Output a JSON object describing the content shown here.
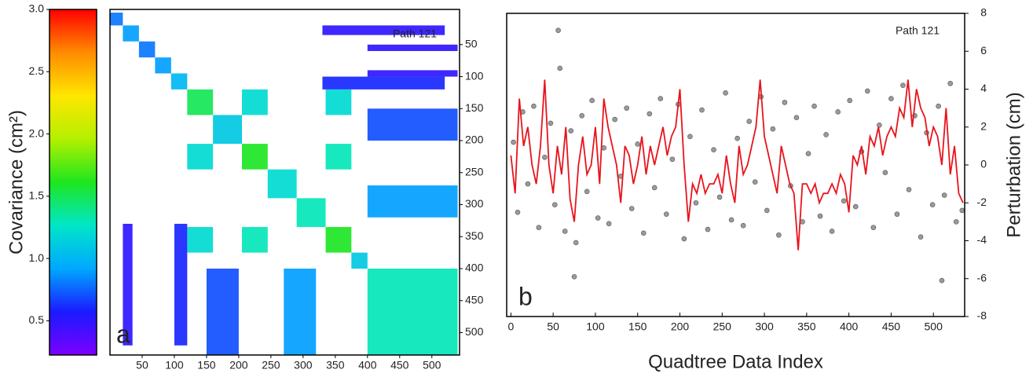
{
  "chart_data": [
    {
      "type": "heatmap",
      "annotation": "Path 121",
      "panel": "a",
      "colorbar_label": "Covariance (cm²)",
      "clim": [
        0.225,
        3.0
      ],
      "cticks": [
        {
          "value": 0.5,
          "label": "0.5"
        },
        {
          "value": 1,
          "label": "1.0"
        },
        {
          "value": 1.5,
          "label": "1.5"
        },
        {
          "value": 2,
          "label": "2.0"
        },
        {
          "value": 2.5,
          "label": "2.5"
        },
        {
          "value": 3,
          "label": "3.0"
        }
      ],
      "colormap": [
        "#7b00ff",
        "#1a1aff",
        "#00a8ff",
        "#00e6c8",
        "#1ee61e",
        "#b4f000",
        "#ffe600",
        "#ff8c00",
        "#ff0000"
      ],
      "xlim": [
        0,
        543
      ],
      "ylim": [
        -5,
        535
      ],
      "xticks": [
        50,
        100,
        150,
        200,
        250,
        300,
        350,
        400,
        450,
        500
      ],
      "yticks": [
        50,
        100,
        150,
        200,
        250,
        300,
        350,
        400,
        450,
        500
      ],
      "blocks": [
        {
          "x": [
            0,
            20
          ],
          "y": [
            0,
            20
          ],
          "value": 0.8
        },
        {
          "x": [
            20,
            45
          ],
          "y": [
            20,
            45
          ],
          "value": 0.9
        },
        {
          "x": [
            45,
            70
          ],
          "y": [
            45,
            70
          ],
          "value": 0.8
        },
        {
          "x": [
            70,
            95
          ],
          "y": [
            70,
            95
          ],
          "value": 0.9
        },
        {
          "x": [
            95,
            120
          ],
          "y": [
            95,
            120
          ],
          "value": 1.0
        },
        {
          "x": [
            120,
            160
          ],
          "y": [
            120,
            160
          ],
          "value": 1.5
        },
        {
          "x": [
            160,
            205
          ],
          "y": [
            160,
            205
          ],
          "value": 1.1
        },
        {
          "x": [
            205,
            245
          ],
          "y": [
            205,
            245
          ],
          "value": 1.6
        },
        {
          "x": [
            245,
            290
          ],
          "y": [
            245,
            290
          ],
          "value": 1.2
        },
        {
          "x": [
            290,
            335
          ],
          "y": [
            290,
            335
          ],
          "value": 1.3
        },
        {
          "x": [
            335,
            375
          ],
          "y": [
            335,
            375
          ],
          "value": 1.6
        },
        {
          "x": [
            375,
            400
          ],
          "y": [
            375,
            400
          ],
          "value": 1.1
        },
        {
          "x": [
            400,
            540
          ],
          "y": [
            400,
            540
          ],
          "value": 1.3
        },
        {
          "x": [
            205,
            245
          ],
          "y": [
            120,
            160
          ],
          "value": 1.2
        },
        {
          "x": [
            120,
            160
          ],
          "y": [
            205,
            245
          ],
          "value": 1.2
        },
        {
          "x": [
            335,
            375
          ],
          "y": [
            120,
            160
          ],
          "value": 1.2
        },
        {
          "x": [
            120,
            160
          ],
          "y": [
            335,
            375
          ],
          "value": 1.2
        },
        {
          "x": [
            335,
            375
          ],
          "y": [
            205,
            245
          ],
          "value": 1.3
        },
        {
          "x": [
            205,
            245
          ],
          "y": [
            335,
            375
          ],
          "value": 1.3
        },
        {
          "x": [
            400,
            540
          ],
          "y": [
            150,
            200
          ],
          "value": 0.7
        },
        {
          "x": [
            150,
            200
          ],
          "y": [
            400,
            540
          ],
          "value": 0.7
        },
        {
          "x": [
            400,
            540
          ],
          "y": [
            270,
            320
          ],
          "value": 0.9
        },
        {
          "x": [
            270,
            320
          ],
          "y": [
            400,
            540
          ],
          "value": 0.9
        },
        {
          "x": [
            20,
            35
          ],
          "y": [
            330,
            520
          ],
          "value": 0.5
        },
        {
          "x": [
            330,
            520
          ],
          "y": [
            20,
            35
          ],
          "value": 0.5
        },
        {
          "x": [
            100,
            120
          ],
          "y": [
            330,
            520
          ],
          "value": 0.6
        },
        {
          "x": [
            330,
            520
          ],
          "y": [
            100,
            120
          ],
          "value": 0.6
        },
        {
          "x": [
            400,
            540
          ],
          "y": [
            50,
            60
          ],
          "value": 0.5
        },
        {
          "x": [
            400,
            540
          ],
          "y": [
            90,
            100
          ],
          "value": 0.5
        }
      ]
    },
    {
      "type": "scatter-line",
      "annotation": "Path 121",
      "panel": "b",
      "xlabel": "Quadtree Data Index",
      "ylabel": "Perturbation (cm)",
      "xlim": [
        -5,
        537
      ],
      "ylim": [
        -8,
        8
      ],
      "xticks": [
        0,
        50,
        100,
        150,
        200,
        250,
        300,
        350,
        400,
        450,
        500
      ],
      "yticks": [
        -8,
        -6,
        -4,
        -2,
        0,
        2,
        4,
        6,
        8
      ],
      "scatter": {
        "color": "#9a9a9a",
        "x": [
          3,
          8,
          14,
          20,
          27,
          33,
          40,
          47,
          52,
          58,
          64,
          71,
          77,
          84,
          90,
          96,
          103,
          110,
          116,
          123,
          130,
          137,
          143,
          150,
          157,
          164,
          170,
          177,
          184,
          191,
          198,
          205,
          212,
          219,
          226,
          233,
          240,
          247,
          254,
          261,
          268,
          275,
          282,
          289,
          296,
          303,
          310,
          317,
          324,
          331,
          338,
          345,
          352,
          359,
          366,
          373,
          380,
          387,
          394,
          401,
          408,
          415,
          422,
          429,
          436,
          443,
          450,
          457,
          464,
          471,
          478,
          485,
          492,
          499,
          506,
          513,
          520,
          527,
          534,
          56,
          75,
          510
        ],
        "y": [
          1.2,
          -2.5,
          2.8,
          -1,
          3.1,
          -3.3,
          0.4,
          2.2,
          -2.1,
          5.1,
          -3.5,
          1.8,
          -4.1,
          2.6,
          -1.4,
          3.4,
          -2.8,
          0.9,
          -3.1,
          2.4,
          -0.6,
          3,
          -2.3,
          1.1,
          -3.6,
          2.7,
          -1.2,
          3.5,
          -2.6,
          0.3,
          3.2,
          -3.9,
          1.5,
          -2,
          2.9,
          -3.4,
          0.8,
          -1.7,
          3.8,
          -2.9,
          1.4,
          -3.2,
          2.3,
          -0.9,
          3.6,
          -2.4,
          1.9,
          -3.7,
          3.3,
          -1.1,
          2.5,
          -3,
          0.6,
          3.1,
          -2.7,
          1.6,
          -3.5,
          2.8,
          -1.9,
          3.4,
          -2.2,
          0.7,
          3.9,
          -3.3,
          2.1,
          -0.4,
          3.5,
          -2.6,
          4.2,
          -1.3,
          2.6,
          -3.8,
          1.7,
          -2.1,
          3.1,
          -1.6,
          4.3,
          -3,
          -2.4,
          7.1,
          -5.9,
          -6.1
        ]
      },
      "line": {
        "color": "#e8141c",
        "x": [
          0,
          5,
          10,
          15,
          20,
          25,
          30,
          35,
          40,
          45,
          50,
          55,
          60,
          65,
          70,
          75,
          80,
          85,
          90,
          95,
          100,
          105,
          110,
          115,
          120,
          125,
          130,
          135,
          140,
          145,
          150,
          155,
          160,
          165,
          170,
          175,
          180,
          185,
          190,
          195,
          200,
          205,
          210,
          215,
          220,
          225,
          230,
          235,
          240,
          245,
          250,
          255,
          260,
          265,
          270,
          275,
          280,
          285,
          290,
          295,
          300,
          305,
          310,
          315,
          320,
          325,
          330,
          335,
          340,
          345,
          350,
          355,
          360,
          365,
          370,
          375,
          380,
          385,
          390,
          395,
          400,
          405,
          410,
          415,
          420,
          425,
          430,
          435,
          440,
          445,
          450,
          455,
          460,
          465,
          470,
          475,
          480,
          485,
          490,
          495,
          500,
          505,
          510,
          515,
          520,
          525,
          530,
          535
        ],
        "y": [
          0.5,
          -1.5,
          3.5,
          1,
          2,
          0,
          -1,
          1,
          4.5,
          0,
          -1.5,
          1,
          -0.5,
          2,
          -1.8,
          -3,
          0,
          1.5,
          -0.5,
          0,
          2,
          -1,
          3.5,
          2,
          1,
          0,
          -2,
          1,
          0.5,
          -1,
          0,
          1.5,
          -0.5,
          1,
          0,
          1,
          2,
          0.5,
          1.5,
          2,
          4,
          0,
          -3,
          -1,
          -1.5,
          -0.5,
          -1.5,
          -1,
          -1,
          -0.5,
          -1.5,
          0.5,
          -1,
          -2,
          1,
          -0.5,
          0,
          1,
          2,
          4.5,
          1.5,
          0.5,
          -0.5,
          -1.5,
          1,
          0,
          -1,
          -1.5,
          -4.5,
          -1,
          -1,
          -1.5,
          -1,
          -2,
          -1.5,
          -1.5,
          -1,
          -1.5,
          -0.5,
          -1,
          -2.5,
          0.5,
          0,
          1,
          -0.5,
          1.5,
          1,
          2,
          0.5,
          1.5,
          2,
          1.5,
          3,
          2.5,
          4.5,
          2,
          4,
          3,
          2.5,
          1,
          2,
          1.5,
          0,
          3,
          -0.5,
          1,
          -1.5,
          -2
        ]
      }
    }
  ]
}
